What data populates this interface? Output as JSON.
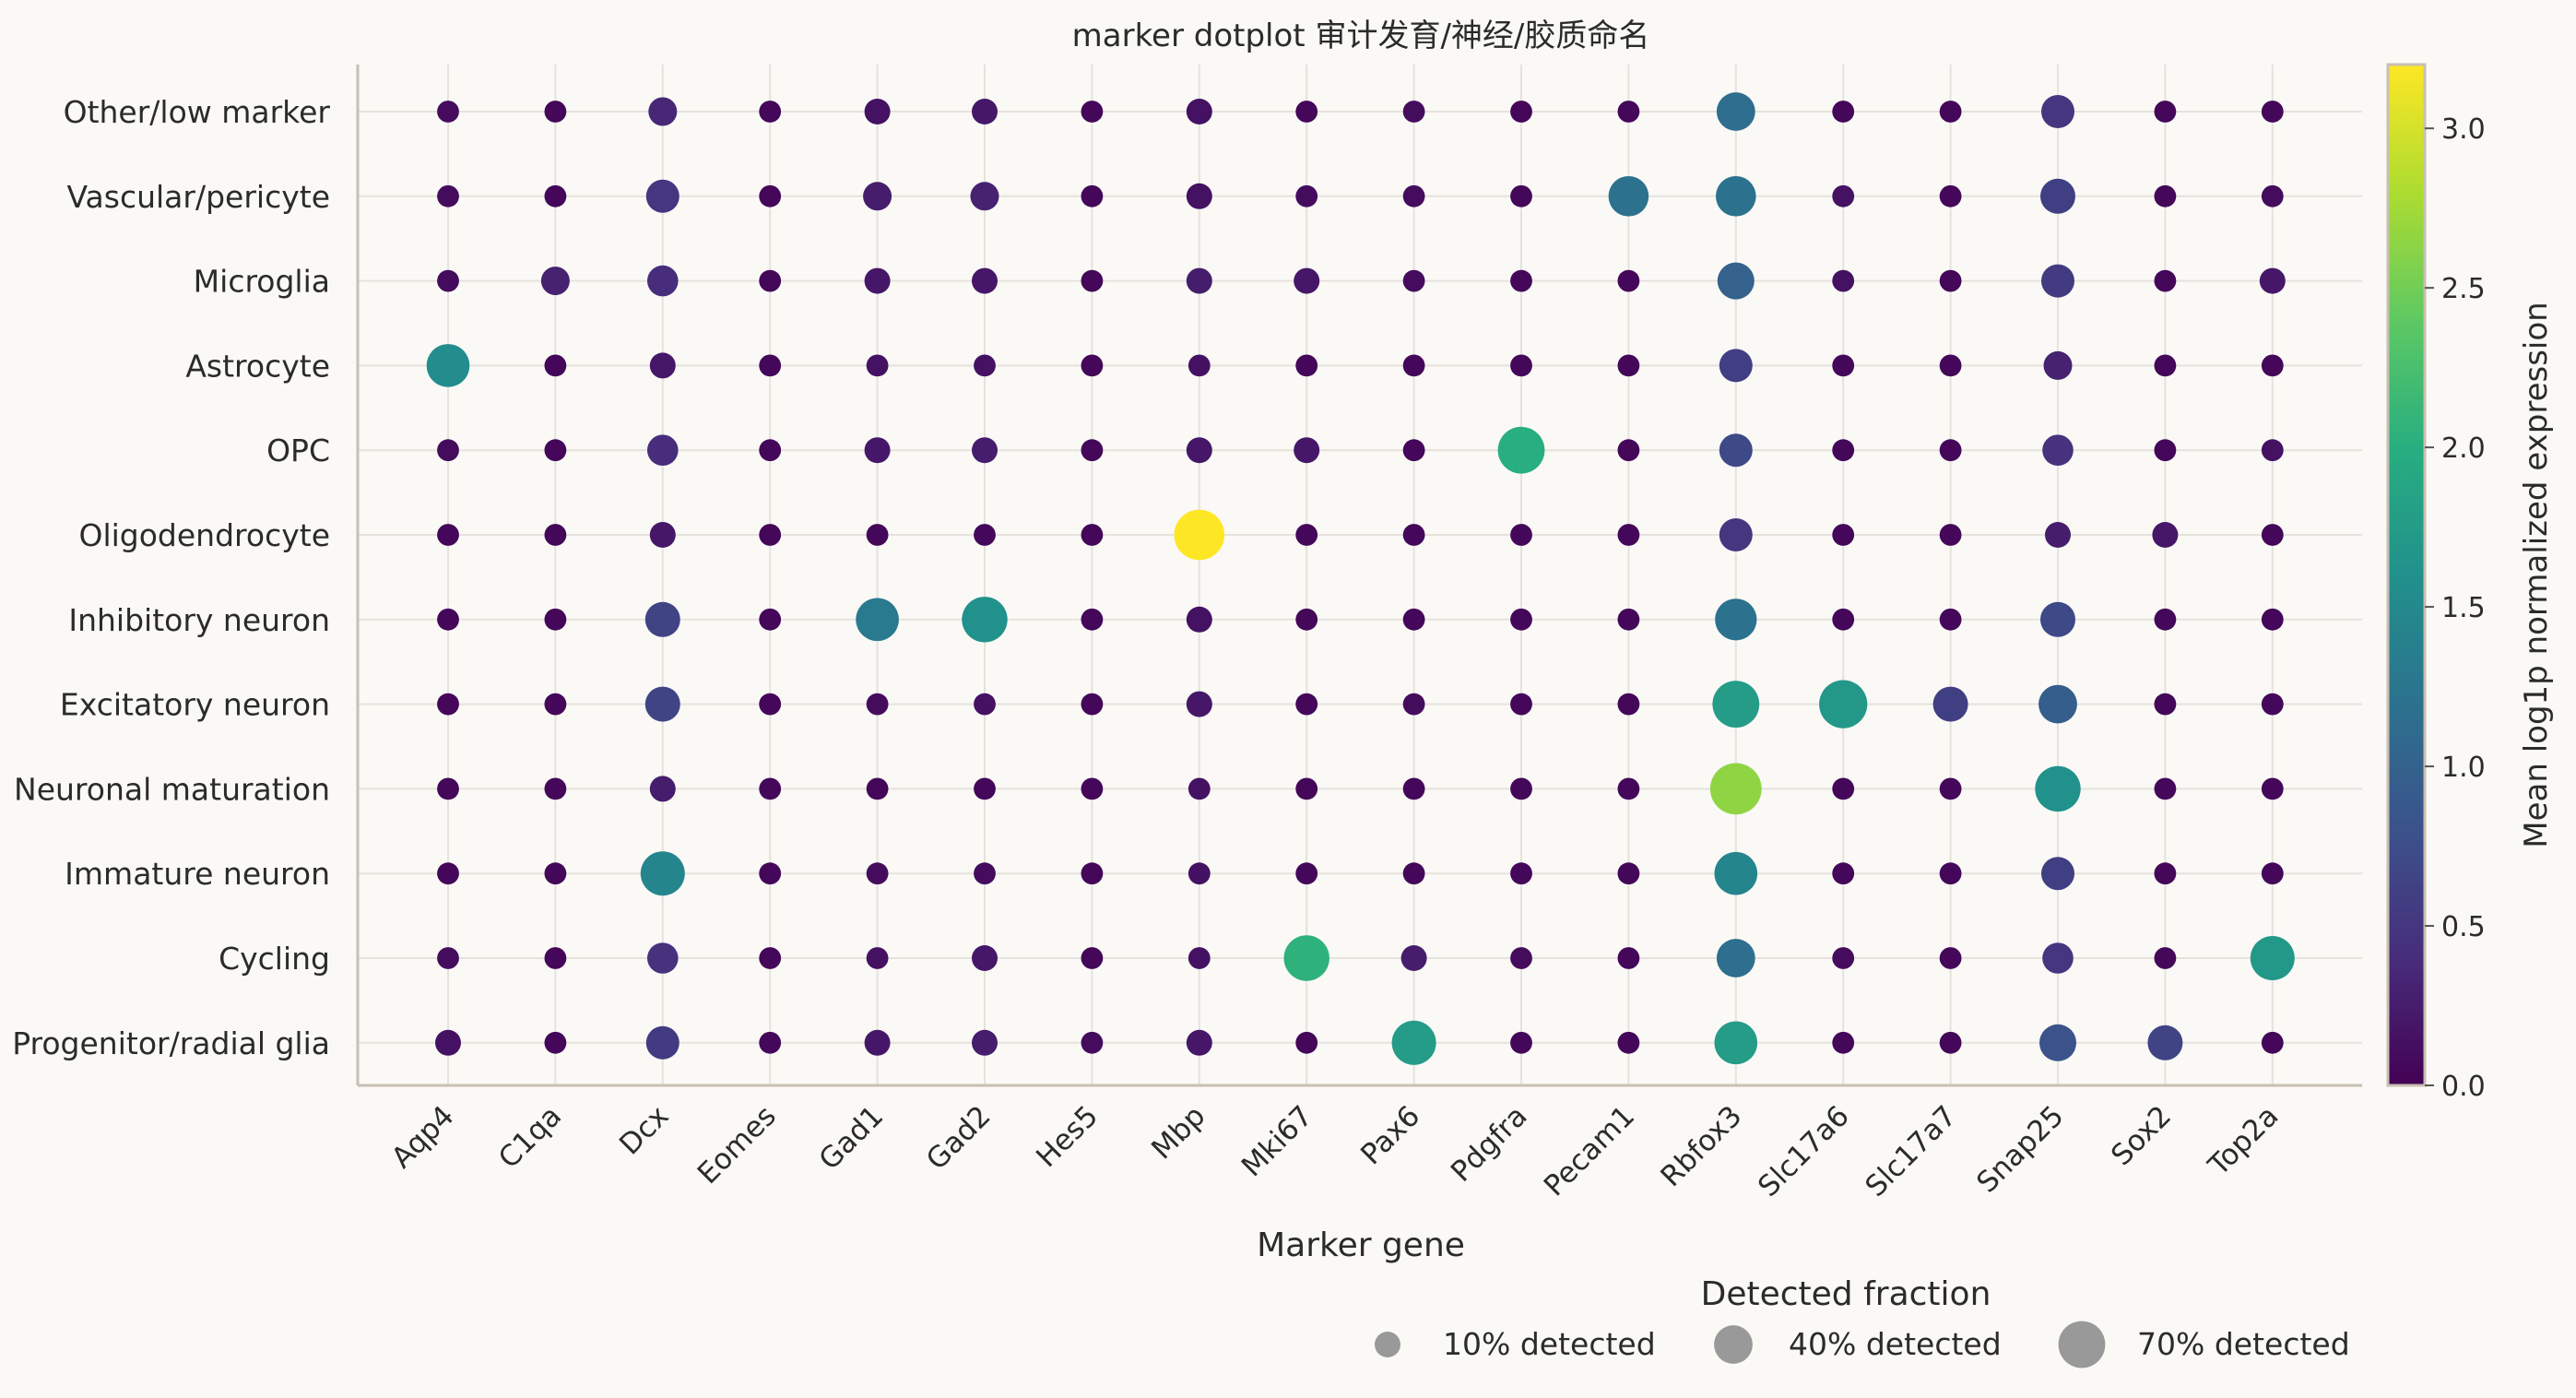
{
  "chart_data": {
    "type": "dotplot",
    "title": "marker dotplot 审计发育/神经/胶质命名",
    "xlabel": "Marker gene",
    "ylabel": "",
    "genes": [
      "Aqp4",
      "C1qa",
      "Dcx",
      "Eomes",
      "Gad1",
      "Gad2",
      "Hes5",
      "Mbp",
      "Mki67",
      "Pax6",
      "Pdgfra",
      "Pecam1",
      "Rbfox3",
      "Slc17a6",
      "Slc17a7",
      "Snap25",
      "Sox2",
      "Top2a"
    ],
    "cell_types": [
      "Other/low marker",
      "Vascular/pericyte",
      "Microglia",
      "Astrocyte",
      "OPC",
      "Oligodendrocyte",
      "Inhibitory neuron",
      "Excitatory neuron",
      "Neuronal maturation",
      "Immature neuron",
      "Cycling",
      "Progenitor/radial glia"
    ],
    "expression": [
      [
        0.1,
        0.05,
        0.35,
        0.05,
        0.15,
        0.2,
        0.05,
        0.15,
        0.05,
        0.1,
        0.05,
        0.05,
        1.15,
        0.05,
        0.05,
        0.5,
        0.05,
        0.05
      ],
      [
        0.1,
        0.05,
        0.5,
        0.05,
        0.25,
        0.3,
        0.05,
        0.15,
        0.1,
        0.1,
        0.05,
        1.2,
        1.2,
        0.15,
        0.05,
        0.6,
        0.05,
        0.1
      ],
      [
        0.1,
        0.3,
        0.4,
        0.05,
        0.2,
        0.2,
        0.05,
        0.25,
        0.2,
        0.1,
        0.05,
        0.05,
        1.0,
        0.15,
        0.05,
        0.55,
        0.05,
        0.2
      ],
      [
        1.55,
        0.05,
        0.2,
        0.05,
        0.15,
        0.15,
        0.05,
        0.15,
        0.05,
        0.05,
        0.05,
        0.05,
        0.6,
        0.05,
        0.05,
        0.3,
        0.05,
        0.05
      ],
      [
        0.1,
        0.05,
        0.4,
        0.05,
        0.2,
        0.25,
        0.05,
        0.2,
        0.2,
        0.05,
        2.0,
        0.05,
        0.7,
        0.05,
        0.05,
        0.45,
        0.05,
        0.15
      ],
      [
        0.05,
        0.05,
        0.2,
        0.05,
        0.05,
        0.05,
        0.05,
        3.2,
        0.05,
        0.05,
        0.05,
        0.05,
        0.5,
        0.05,
        0.05,
        0.25,
        0.2,
        0.05
      ],
      [
        0.05,
        0.05,
        0.65,
        0.05,
        1.3,
        1.6,
        0.05,
        0.15,
        0.05,
        0.05,
        0.05,
        0.05,
        1.2,
        0.05,
        0.05,
        0.7,
        0.05,
        0.05
      ],
      [
        0.05,
        0.05,
        0.65,
        0.05,
        0.1,
        0.15,
        0.05,
        0.2,
        0.05,
        0.1,
        0.05,
        0.05,
        1.75,
        1.7,
        0.6,
        0.95,
        0.05,
        0.05
      ],
      [
        0.05,
        0.05,
        0.25,
        0.05,
        0.05,
        0.05,
        0.05,
        0.15,
        0.05,
        0.05,
        0.05,
        0.05,
        2.65,
        0.05,
        0.05,
        1.6,
        0.05,
        0.05
      ],
      [
        0.05,
        0.05,
        1.45,
        0.05,
        0.1,
        0.1,
        0.05,
        0.15,
        0.05,
        0.05,
        0.05,
        0.05,
        1.45,
        0.05,
        0.05,
        0.6,
        0.05,
        0.05
      ],
      [
        0.1,
        0.05,
        0.45,
        0.05,
        0.15,
        0.2,
        0.05,
        0.15,
        2.05,
        0.25,
        0.1,
        0.05,
        1.15,
        0.1,
        0.05,
        0.5,
        0.05,
        1.7
      ],
      [
        0.15,
        0.05,
        0.55,
        0.05,
        0.2,
        0.25,
        0.1,
        0.2,
        0.05,
        1.75,
        0.05,
        0.05,
        1.75,
        0.05,
        0.05,
        0.8,
        0.65,
        0.05
      ]
    ],
    "fraction": [
      [
        0.05,
        0.05,
        0.15,
        0.05,
        0.1,
        0.1,
        0.05,
        0.1,
        0.05,
        0.05,
        0.05,
        0.05,
        0.4,
        0.05,
        0.05,
        0.25,
        0.05,
        0.05
      ],
      [
        0.05,
        0.05,
        0.25,
        0.05,
        0.15,
        0.15,
        0.05,
        0.1,
        0.05,
        0.05,
        0.05,
        0.45,
        0.45,
        0.05,
        0.05,
        0.3,
        0.05,
        0.05
      ],
      [
        0.05,
        0.15,
        0.2,
        0.05,
        0.1,
        0.1,
        0.05,
        0.1,
        0.1,
        0.05,
        0.05,
        0.05,
        0.35,
        0.05,
        0.05,
        0.25,
        0.05,
        0.1
      ],
      [
        0.55,
        0.05,
        0.1,
        0.05,
        0.05,
        0.05,
        0.05,
        0.05,
        0.05,
        0.05,
        0.05,
        0.05,
        0.25,
        0.05,
        0.05,
        0.15,
        0.05,
        0.05
      ],
      [
        0.05,
        0.05,
        0.2,
        0.05,
        0.1,
        0.1,
        0.05,
        0.1,
        0.1,
        0.05,
        0.7,
        0.05,
        0.25,
        0.05,
        0.05,
        0.2,
        0.05,
        0.05
      ],
      [
        0.05,
        0.05,
        0.1,
        0.05,
        0.05,
        0.05,
        0.05,
        0.85,
        0.05,
        0.05,
        0.05,
        0.05,
        0.25,
        0.05,
        0.05,
        0.1,
        0.1,
        0.05
      ],
      [
        0.05,
        0.05,
        0.3,
        0.05,
        0.55,
        0.65,
        0.05,
        0.1,
        0.05,
        0.05,
        0.05,
        0.05,
        0.5,
        0.05,
        0.05,
        0.3,
        0.05,
        0.05
      ],
      [
        0.05,
        0.05,
        0.3,
        0.05,
        0.05,
        0.05,
        0.05,
        0.1,
        0.05,
        0.05,
        0.05,
        0.05,
        0.7,
        0.75,
        0.3,
        0.4,
        0.05,
        0.05
      ],
      [
        0.05,
        0.05,
        0.1,
        0.05,
        0.05,
        0.05,
        0.05,
        0.05,
        0.05,
        0.05,
        0.05,
        0.05,
        0.9,
        0.05,
        0.05,
        0.65,
        0.05,
        0.05
      ],
      [
        0.05,
        0.05,
        0.6,
        0.05,
        0.05,
        0.05,
        0.05,
        0.05,
        0.05,
        0.05,
        0.05,
        0.05,
        0.55,
        0.05,
        0.05,
        0.25,
        0.05,
        0.05
      ],
      [
        0.05,
        0.05,
        0.2,
        0.05,
        0.05,
        0.1,
        0.05,
        0.05,
        0.65,
        0.1,
        0.05,
        0.05,
        0.4,
        0.05,
        0.05,
        0.2,
        0.05,
        0.6
      ],
      [
        0.1,
        0.05,
        0.25,
        0.05,
        0.1,
        0.1,
        0.05,
        0.1,
        0.05,
        0.6,
        0.05,
        0.05,
        0.55,
        0.05,
        0.05,
        0.35,
        0.3,
        0.05
      ]
    ],
    "colorbar": {
      "label": "Mean log1p normalized expression",
      "range": [
        0,
        3.2
      ],
      "ticks": [
        "0.0",
        "0.5",
        "1.0",
        "1.5",
        "2.0",
        "2.5",
        "3.0"
      ],
      "colormap": "viridis"
    },
    "size_legend": {
      "title": "Detected fraction",
      "entries": [
        {
          "label": "10% detected",
          "fraction": 0.1
        },
        {
          "label": "40% detected",
          "fraction": 0.4
        },
        {
          "label": "70% detected",
          "fraction": 0.7
        }
      ]
    },
    "grid": true,
    "legend_position": "bottom-right",
    "colors": {
      "background": "#faf9f6",
      "axis": "#c9bfb3",
      "grid": "#e6e2dc",
      "legend_marker": "#999999",
      "text": "#2b2b2b"
    }
  }
}
